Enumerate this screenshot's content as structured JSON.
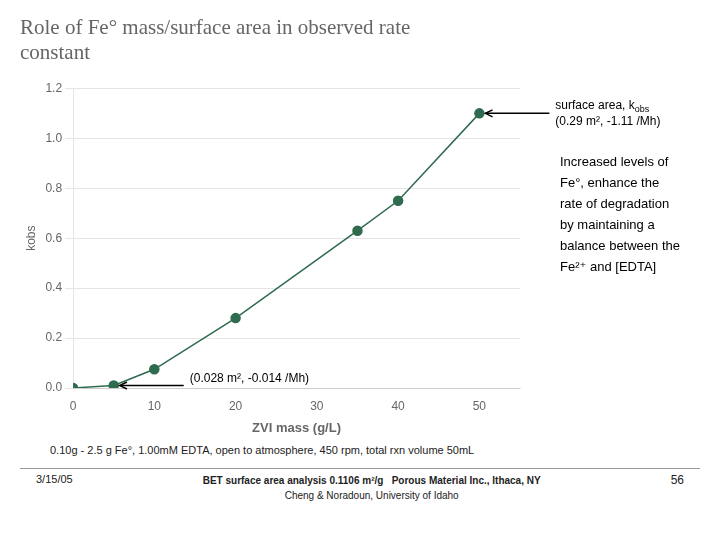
{
  "chart_data": {
    "type": "line",
    "title": [
      "Role of Fe° mass/surface area in observed rate",
      "constant"
    ],
    "x_label": "ZVI mass (g/L)",
    "y_label": "kobs",
    "x": [
      0,
      5,
      10,
      20,
      35,
      40,
      50
    ],
    "series": [
      {
        "color": "#2E6B4F",
        "marker": "circle",
        "values": [
          0.0,
          0.01,
          0.075,
          0.28,
          0.63,
          0.75,
          1.1
        ]
      }
    ],
    "xlim": [
      0,
      55
    ],
    "ylim": [
      0,
      1.2
    ],
    "xticks": [
      0,
      10,
      20,
      30,
      40,
      50
    ],
    "yticks": [
      {
        "value": 0,
        "label": "0.0"
      },
      0.2,
      0.4,
      0.6,
      0.8,
      {
        "value": 1,
        "label": "1.0"
      },
      1.2
    ],
    "grid": "y",
    "annotations": [
      {
        "x": 50,
        "y": 1.1,
        "lines": [
          [
            "surface area, k",
            {
              "sub": "obs"
            }
          ],
          [
            "(0.29 m², -1.11 /Mh)"
          ]
        ]
      },
      {
        "x": 5,
        "y": 0.01,
        "lines": [
          [
            "(0.028 m², -0.014 /Mh)"
          ]
        ]
      }
    ],
    "text_block": [
      "Increased levels of",
      "Fe°, enhance the",
      "rate of degradation",
      "by maintaining a",
      "balance between the",
      "Fe²⁺ and [EDTA]"
    ],
    "footnote": "0.10g - 2.5 g Fe°, 1.00mM EDTA, open to atmosphere, 450 rpm, total rxn volume 50mL",
    "footer": {
      "left": "3/15/05",
      "center": [
        "BET surface area analysis 0.1106 m²/g   Porous Material Inc., Ithaca, NY",
        "Cheng & Noradoun, University of Idaho"
      ],
      "right": "56"
    }
  }
}
